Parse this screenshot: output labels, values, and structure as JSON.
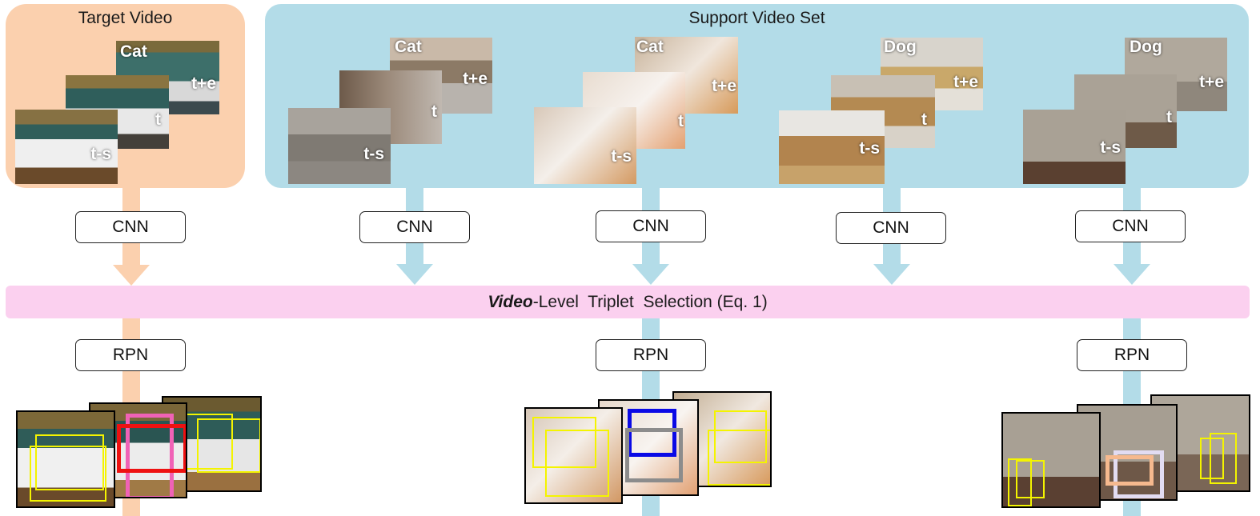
{
  "target_panel": {
    "title": "Target Video",
    "class_label": "Cat"
  },
  "support_panel": {
    "title": "Support Video Set",
    "groups": [
      {
        "class_label": "Cat"
      },
      {
        "class_label": "Cat"
      },
      {
        "class_label": "Dog"
      },
      {
        "class_label": "Dog"
      }
    ]
  },
  "frame_labels": {
    "later": "t+e",
    "current": "t",
    "earlier": "t-s"
  },
  "cnn_label": "CNN",
  "rpn_label": "RPN",
  "selection_bar": {
    "emphasis": "Video",
    "rest": "-Level  Triplet  Selection (Eq. 1)"
  },
  "colors": {
    "target_panel": "#fbd0ae",
    "support_panel": "#b3dce8",
    "selection_bar": "#fbd0ef",
    "box_yellow": "#f4f400",
    "box_red": "#ee1111",
    "box_pink": "#f062b6",
    "box_blue": "#0a0ae6",
    "box_gray": "#8c8c8c",
    "box_peach": "#f6b98e",
    "box_lavender": "#e2dcf2"
  }
}
